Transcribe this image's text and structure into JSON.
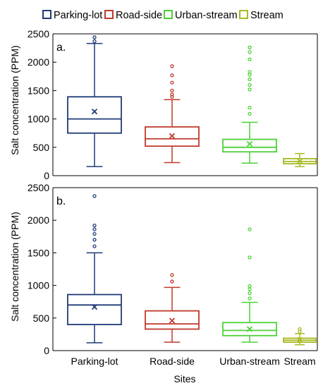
{
  "chart_data": {
    "type": "box",
    "legend": {
      "placement": "top",
      "entries": [
        "Parking-lot",
        "Road-side",
        "Urban-stream",
        "Stream"
      ]
    },
    "colors": {
      "Parking-lot": "#1f3a78",
      "Road-side": "#c0392b",
      "Urban-stream": "#4cd137",
      "Stream": "#a8b820"
    },
    "categories": [
      "Parking-lot",
      "Road-side",
      "Urban-stream",
      "Stream"
    ],
    "xlabel": "Sites",
    "ylabel": "Salt concentration (PPM)",
    "panels": [
      {
        "label": "a.",
        "ylim": [
          0,
          2500
        ],
        "yticks": [
          0,
          500,
          1000,
          1500,
          2000,
          2500
        ],
        "boxes": [
          {
            "name": "Parking-lot",
            "whisker_low": 160,
            "q1": 750,
            "median": 1000,
            "q3": 1390,
            "whisker_high": 2330,
            "mean": 1130,
            "outliers": [
              2370,
              2440
            ]
          },
          {
            "name": "Road-side",
            "whisker_low": 230,
            "q1": 520,
            "median": 650,
            "q3": 860,
            "whisker_high": 1340,
            "mean": 700,
            "outliers": [
              1390,
              1430,
              1500,
              1640,
              1770,
              1930
            ]
          },
          {
            "name": "Urban-stream",
            "whisker_low": 220,
            "q1": 420,
            "median": 500,
            "q3": 640,
            "whisker_high": 940,
            "mean": 560,
            "outliers": [
              1090,
              1200,
              1520,
              1600,
              1700,
              1780,
              1830,
              2050,
              2180,
              2260
            ]
          },
          {
            "name": "Stream",
            "whisker_low": 160,
            "q1": 210,
            "median": 250,
            "q3": 300,
            "whisker_high": 390,
            "mean": 255,
            "outliers": []
          }
        ]
      },
      {
        "label": "b.",
        "ylim": [
          0,
          2500
        ],
        "yticks": [
          0,
          500,
          1000,
          1500,
          2000,
          2500
        ],
        "boxes": [
          {
            "name": "Parking-lot",
            "whisker_low": 120,
            "q1": 400,
            "median": 700,
            "q3": 860,
            "whisker_high": 1500,
            "mean": 670,
            "outliers": [
              1600,
              1700,
              1790,
              1860,
              1920,
              2370
            ]
          },
          {
            "name": "Road-side",
            "whisker_low": 130,
            "q1": 330,
            "median": 410,
            "q3": 610,
            "whisker_high": 970,
            "mean": 460,
            "outliers": [
              1060,
              1160
            ]
          },
          {
            "name": "Urban-stream",
            "whisker_low": 130,
            "q1": 230,
            "median": 310,
            "q3": 430,
            "whisker_high": 740,
            "mean": 330,
            "outliers": [
              800,
              880,
              940,
              990,
              1430,
              1860
            ]
          },
          {
            "name": "Stream",
            "whisker_low": 90,
            "q1": 130,
            "median": 160,
            "q3": 190,
            "whisker_high": 260,
            "mean": 165,
            "outliers": [
              290,
              330
            ]
          }
        ]
      }
    ]
  }
}
